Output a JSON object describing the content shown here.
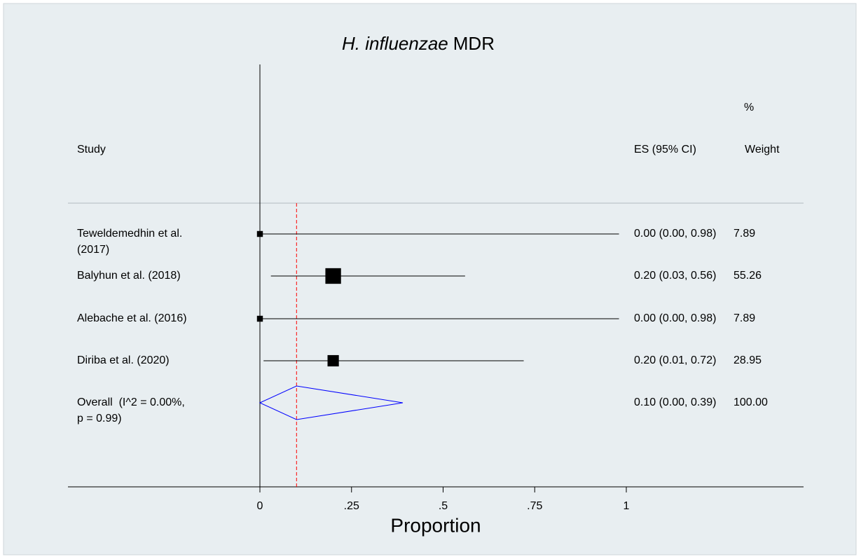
{
  "chart_data": {
    "type": "forest",
    "title": [
      "H. influenzae",
      "MDR"
    ],
    "headers": {
      "weight_unit": "%",
      "study": "Study",
      "es": "ES (95% CI)",
      "weight": "Weight"
    },
    "x_label": "Proportion",
    "xlim": [
      0,
      1
    ],
    "xticks": [
      0,
      {
        "value": 0.25,
        "label": ".25"
      },
      {
        "value": 0.5,
        "label": ".5"
      },
      {
        "value": 0.75,
        "label": ".75"
      },
      1
    ],
    "studies": [
      {
        "label": [
          "Teweldemedhin et al.",
          "(2017)"
        ],
        "es": 0,
        "ci": [
          0,
          0.98
        ],
        "es_label": "0.00 (0.00, 0.98)",
        "weight": 7.89
      },
      {
        "label": [
          "Balyhun et al. (2018)"
        ],
        "es": 0.2,
        "ci": [
          0.03,
          0.56
        ],
        "es_label": "0.20 (0.03, 0.56)",
        "weight": 55.26
      },
      {
        "label": [
          "Alebache et al. (2016)"
        ],
        "es": 0,
        "ci": [
          0,
          0.98
        ],
        "es_label": "0.00 (0.00, 0.98)",
        "weight": 7.89
      },
      {
        "label": [
          "Diriba et al. (2020)"
        ],
        "es": 0.2,
        "ci": [
          0.01,
          0.72
        ],
        "es_label": "0.20 (0.01, 0.72)",
        "weight": 28.95
      }
    ],
    "overall": {
      "label": [
        "Overall  (I^2 = 0.00%,",
        "p = 0.99)"
      ],
      "es": 0.1,
      "ci": [
        0,
        0.39
      ],
      "es_label": "0.10 (0.00, 0.39)",
      "weight": 100,
      "weight_label": "100.00"
    },
    "colors": {
      "marker": "#000000",
      "diamond": "#0000ff",
      "reference": "#ff0000"
    }
  }
}
